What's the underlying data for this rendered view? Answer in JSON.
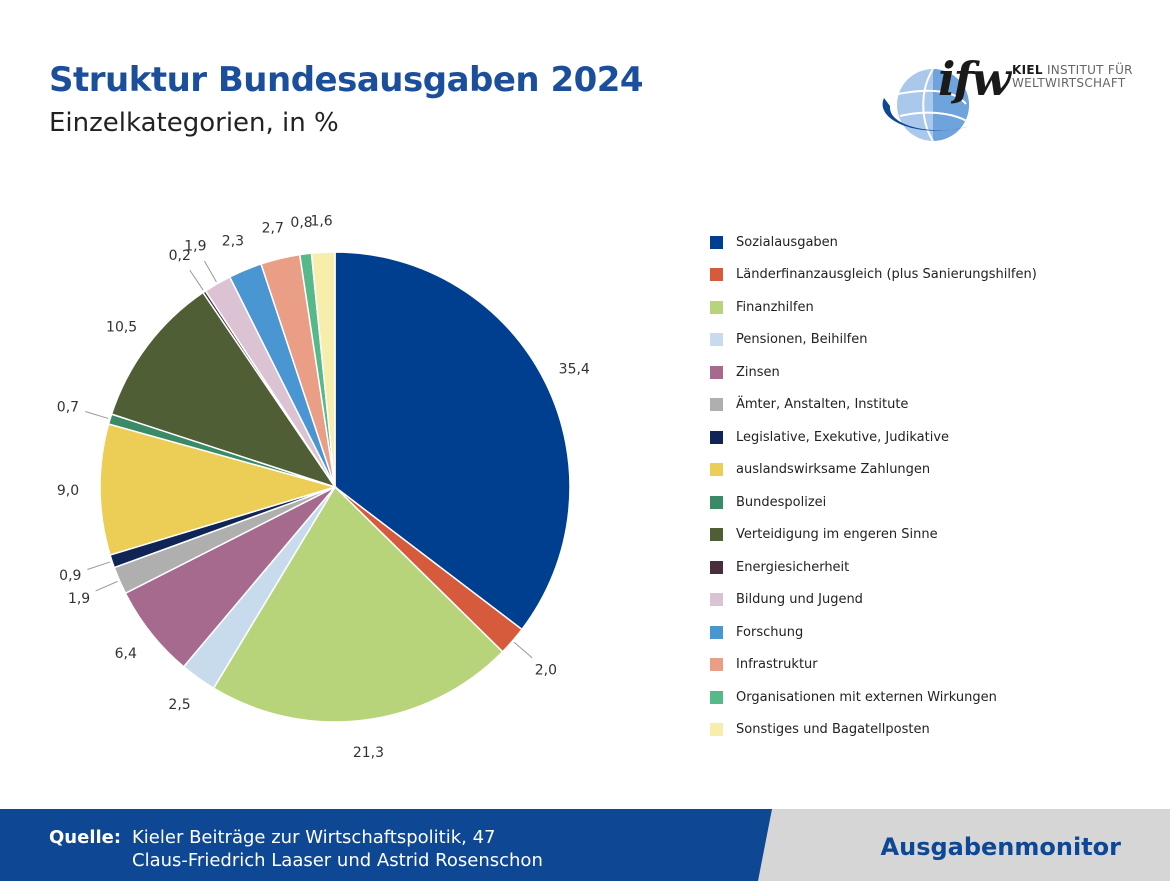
{
  "header": {
    "title": "Struktur Bundesausgaben 2024",
    "subtitle": "Einzelkategorien, in %"
  },
  "logo": {
    "mark": "ifw",
    "line1_bold": "KIEL",
    "line1_rest": "INSTITUT FÜR",
    "line2": "WELTWIRTSCHAFT"
  },
  "chart_data": {
    "type": "pie",
    "slices": [
      {
        "label": "Sozialausgaben",
        "value": 35.4,
        "display": "35,4",
        "color": "#003f8f"
      },
      {
        "label": "Länderfinanzausgleich (plus Sanierungshilfen)",
        "value": 2.0,
        "display": "2,0",
        "color": "#d65a3c"
      },
      {
        "label": "Finanzhilfen",
        "value": 21.3,
        "display": "21,3",
        "color": "#b8d47b"
      },
      {
        "label": "Pensionen, Beihilfen",
        "value": 2.5,
        "display": "2,5",
        "color": "#c8dbed"
      },
      {
        "label": "Zinsen",
        "value": 6.4,
        "display": "6,4",
        "color": "#a56a8d"
      },
      {
        "label": "Ämter, Anstalten, Institute",
        "value": 1.9,
        "display": "1,9",
        "color": "#afafaf"
      },
      {
        "label": "Legislative, Exekutive, Judikative",
        "value": 0.9,
        "display": "0,9",
        "color": "#0f2556"
      },
      {
        "label": "auslandswirksame Zahlungen",
        "value": 9.0,
        "display": "9,0",
        "color": "#eccd56"
      },
      {
        "label": "Bundespolizei",
        "value": 0.7,
        "display": "0,7",
        "color": "#3a8a68"
      },
      {
        "label": "Verteidigung im engeren Sinne",
        "value": 10.5,
        "display": "10,5",
        "color": "#4f5e35"
      },
      {
        "label": "Energiesicherheit",
        "value": 0.2,
        "display": "0,2",
        "color": "#4a2c3c"
      },
      {
        "label": "Bildung und Jugend",
        "value": 1.9,
        "display": "1,9",
        "color": "#dcc3d3"
      },
      {
        "label": "Forschung",
        "value": 2.3,
        "display": "2,3",
        "color": "#4a96d2"
      },
      {
        "label": "Infrastruktur",
        "value": 2.7,
        "display": "2,7",
        "color": "#e99e85"
      },
      {
        "label": "Organisationen mit externen Wirkungen",
        "value": 0.8,
        "display": "0,8",
        "color": "#56b98a"
      },
      {
        "label": "Sonstiges und Bagatellposten",
        "value": 1.6,
        "display": "1,6",
        "color": "#f7eeac"
      }
    ]
  },
  "footer": {
    "source_label": "Quelle:",
    "source_line1": "Kieler Beiträge zur Wirtschaftspolitik, 47",
    "source_line2": "Claus-Friedrich Laaser und Astrid Rosenschon",
    "brand": "Ausgabenmonitor"
  }
}
